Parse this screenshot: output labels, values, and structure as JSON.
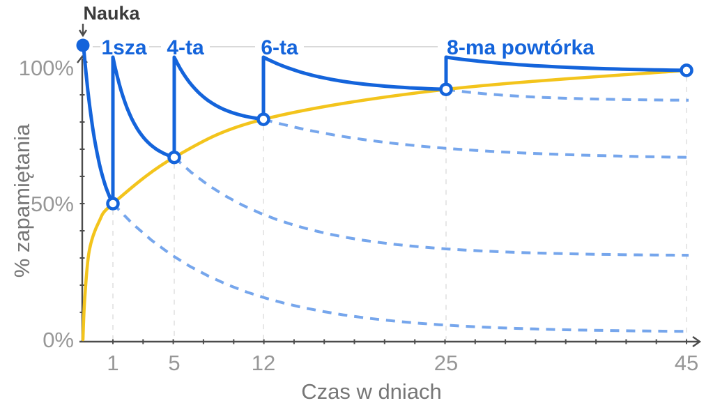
{
  "chart_data": {
    "type": "line",
    "annotation": {
      "text": "Nauka",
      "day": 0,
      "percent": 100
    },
    "xlabel": "Czas w dniach",
    "ylabel": "% zapamiętania",
    "x_tick_days": [
      1,
      5,
      12,
      25,
      45
    ],
    "x_tick_labels": [
      "1",
      "5",
      "12",
      "25",
      "45"
    ],
    "y_tick_labels": [
      "100%",
      "50%",
      "0%"
    ],
    "y_tick_percents": [
      100,
      50,
      0
    ],
    "ylim": [
      0,
      100
    ],
    "x_scale": "nonlinear",
    "repetition_labels": [
      "1sza",
      "4-ta",
      "6-ta",
      "8-ma powtórka"
    ],
    "series": [
      {
        "name": "retention-with-repetitions",
        "style": "solid",
        "color": "#1464DB",
        "shape": "sawtooth-reset-to-100",
        "reviews": [
          {
            "day": 1,
            "retention_before_review_percent": 50
          },
          {
            "day": 5,
            "retention_before_review_percent": 67
          },
          {
            "day": 12,
            "retention_before_review_percent": 81
          },
          {
            "day": 25,
            "retention_before_review_percent": 92
          },
          {
            "day": 45,
            "retention_before_review_percent": 99
          }
        ]
      },
      {
        "name": "retention-envelope",
        "style": "solid",
        "color": "#F3C41C",
        "points": [
          {
            "day": 0,
            "percent": 0
          },
          {
            "day": 1,
            "percent": 50
          },
          {
            "day": 5,
            "percent": 67
          },
          {
            "day": 12,
            "percent": 81
          },
          {
            "day": 25,
            "percent": 92
          },
          {
            "day": 45,
            "percent": 99
          }
        ]
      },
      {
        "name": "forgetting-without-review",
        "style": "dashed",
        "color": "#76A6EC",
        "curves": [
          {
            "from_day": 1,
            "start_percent": 50,
            "percent_at_day_45": 3
          },
          {
            "from_day": 5,
            "start_percent": 67,
            "percent_at_day_45": 31
          },
          {
            "from_day": 12,
            "start_percent": 81,
            "percent_at_day_45": 67
          },
          {
            "from_day": 25,
            "start_percent": 92,
            "percent_at_day_45": 88
          }
        ]
      }
    ]
  },
  "colors": {
    "axis": "#4c4c4c",
    "tick_text": "#979797",
    "axis_title_text": "#767676",
    "annotation_text": "#3b3b3b",
    "repetition_label_text": "#1464DB",
    "connector_line": "#d9d9d9",
    "gridline": "#e7e7e7",
    "background": "#ffffff"
  }
}
